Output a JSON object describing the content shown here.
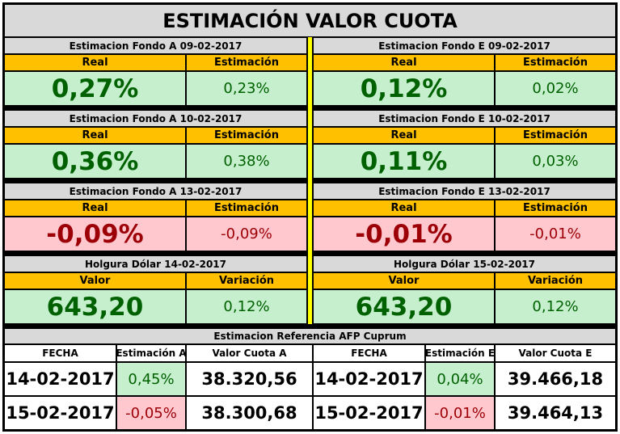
{
  "title": "ESTIMACIÓN VALOR CUOTA",
  "sections": [
    {
      "left": {
        "subtitle": "Estimacion Fondo A  09-02-2017",
        "h1": "Real",
        "h2": "Estimación",
        "v1": "0,27%",
        "v2": "0,23%"
      },
      "right": {
        "subtitle": "Estimacion Fondo E  09-02-2017",
        "h1": "Real",
        "h2": "Estimación",
        "v1": "0,12%",
        "v2": "0,02%"
      }
    },
    {
      "left": {
        "subtitle": "Estimacion Fondo A  10-02-2017",
        "h1": "Real",
        "h2": "Estimación",
        "v1": "0,36%",
        "v2": "0,38%"
      },
      "right": {
        "subtitle": "Estimacion Fondo E  10-02-2017",
        "h1": "Real",
        "h2": "Estimación",
        "v1": "0,11%",
        "v2": "0,03%"
      }
    },
    {
      "left": {
        "subtitle": "Estimacion Fondo A  13-02-2017",
        "h1": "Real",
        "h2": "Estimación",
        "v1": "-0,09%",
        "v2": "-0,09%"
      },
      "right": {
        "subtitle": "Estimacion Fondo E  13-02-2017",
        "h1": "Real",
        "h2": "Estimación",
        "v1": "-0,01%",
        "v2": "-0,01%"
      }
    },
    {
      "left": {
        "subtitle": "Holgura Dólar  14-02-2017",
        "h1": "Valor",
        "h2": "Variación",
        "v1": "643,20",
        "v2": "0,12%"
      },
      "right": {
        "subtitle": "Holgura Dólar  15-02-2017",
        "h1": "Valor",
        "h2": "Variación",
        "v1": "643,20",
        "v2": "0,12%"
      }
    }
  ],
  "reference": {
    "title": "Estimacion Referencia AFP Cuprum",
    "headers": [
      "FECHA",
      "Estimación A",
      "Valor Cuota A",
      "FECHA",
      "Estimación E",
      "Valor Cuota E"
    ],
    "rows": [
      [
        "14-02-2017",
        "0,45%",
        "38.320,56",
        "14-02-2017",
        "0,04%",
        "39.466,18"
      ],
      [
        "15-02-2017",
        "-0,05%",
        "38.300,68",
        "15-02-2017",
        "-0,01%",
        "39.464,13"
      ]
    ]
  },
  "colors": {
    "gold": "#ffc000",
    "gray": "#d9d9d9",
    "green_bg": "#c6efce",
    "green_text": "#006100",
    "red_bg": "#ffc7ce",
    "red_text": "#9c0006",
    "divider": "#ffff00"
  }
}
